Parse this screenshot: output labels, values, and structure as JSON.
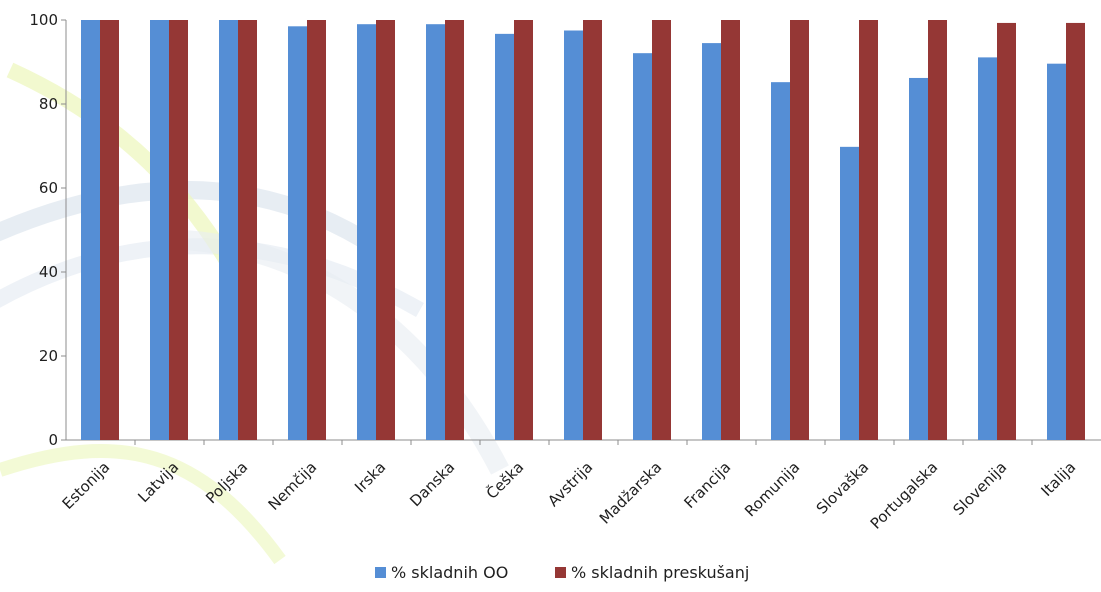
{
  "chart_data": {
    "type": "bar",
    "categories": [
      "Estonija",
      "Latvija",
      "Poljska",
      "Nemčija",
      "Irska",
      "Danska",
      "Češka",
      "Avstrija",
      "Madžarska",
      "Francija",
      "Romunija",
      "Slovaška",
      "Portugalska",
      "Slovenija",
      "Italija"
    ],
    "series": [
      {
        "name": "% skladnih OO",
        "color": "#558ed5",
        "values": [
          100,
          100,
          100,
          98.5,
          99,
          99,
          96.7,
          97.5,
          92.1,
          94.5,
          85.2,
          69.8,
          86.2,
          91.1,
          89.6
        ]
      },
      {
        "name": "% skladnih preskušanj",
        "color": "#953735",
        "values": [
          100,
          100,
          100,
          100,
          100,
          100,
          100,
          100,
          100,
          100,
          100,
          100,
          100,
          99.3,
          99.3
        ]
      }
    ],
    "yticks": [
      0,
      20,
      40,
      60,
      80,
      100
    ],
    "ylim": [
      0,
      100
    ],
    "grid": false,
    "legend_position": "bottom"
  }
}
